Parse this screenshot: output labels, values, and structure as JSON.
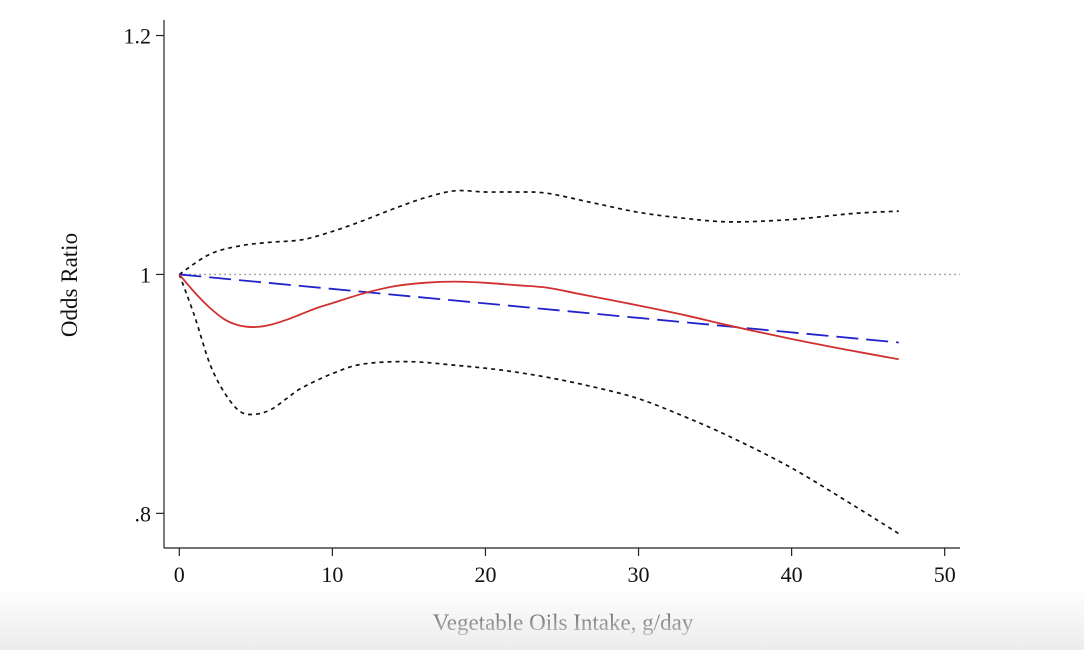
{
  "chart_data": {
    "type": "line",
    "title": "",
    "xlabel": "Vegetable Oils Intake, g/day",
    "ylabel": "Odds Ratio",
    "xlim": [
      -1,
      51
    ],
    "ylim": [
      0.771,
      1.213
    ],
    "x_ticks": [
      0,
      10,
      20,
      30,
      40,
      50
    ],
    "x_tick_labels": [
      "0",
      "10",
      "20",
      "30",
      "40",
      "50"
    ],
    "y_ticks": [
      0.8,
      1.0,
      1.2
    ],
    "y_tick_labels": [
      ".8",
      "1",
      "1.2"
    ],
    "grid": false,
    "legend": "none",
    "reference_line": {
      "y": 1.0,
      "style": "dotted",
      "color": "#888888"
    },
    "series": [
      {
        "name": "nonlinear",
        "style": "solid",
        "color": "#d03030",
        "x": [
          0,
          1,
          2,
          3,
          4,
          5,
          6,
          7,
          8,
          9,
          10,
          12,
          14,
          16,
          18,
          20,
          22,
          24,
          26,
          28,
          30,
          33,
          36,
          40,
          44,
          47
        ],
        "y": [
          1.0,
          0.985,
          0.972,
          0.962,
          0.957,
          0.956,
          0.958,
          0.962,
          0.967,
          0.972,
          0.976,
          0.984,
          0.99,
          0.993,
          0.994,
          0.993,
          0.991,
          0.989,
          0.984,
          0.979,
          0.974,
          0.966,
          0.957,
          0.946,
          0.936,
          0.929
        ]
      },
      {
        "name": "linear",
        "style": "dashed",
        "color": "#2222cc",
        "x": [
          0,
          47
        ],
        "y": [
          1.0,
          0.943
        ]
      },
      {
        "name": "upper_ci",
        "style": "dotted",
        "color": "#111111",
        "x": [
          0,
          2,
          4,
          6,
          8,
          10,
          12,
          14,
          16,
          18,
          20,
          22,
          24,
          27,
          30,
          33,
          36,
          40,
          44,
          47
        ],
        "y": [
          1.0,
          1.017,
          1.024,
          1.027,
          1.029,
          1.036,
          1.045,
          1.055,
          1.064,
          1.07,
          1.069,
          1.069,
          1.068,
          1.06,
          1.052,
          1.047,
          1.044,
          1.046,
          1.051,
          1.053
        ]
      },
      {
        "name": "lower_ci",
        "style": "dotted",
        "color": "#111111",
        "x": [
          0,
          1,
          2,
          3,
          4,
          5,
          6,
          7,
          8,
          10,
          12,
          15,
          18,
          21,
          24,
          27,
          30,
          33,
          36,
          40,
          44,
          47
        ],
        "y": [
          1.0,
          0.965,
          0.925,
          0.9,
          0.885,
          0.883,
          0.887,
          0.896,
          0.905,
          0.917,
          0.925,
          0.927,
          0.924,
          0.92,
          0.914,
          0.906,
          0.896,
          0.881,
          0.864,
          0.838,
          0.807,
          0.783
        ]
      }
    ]
  }
}
